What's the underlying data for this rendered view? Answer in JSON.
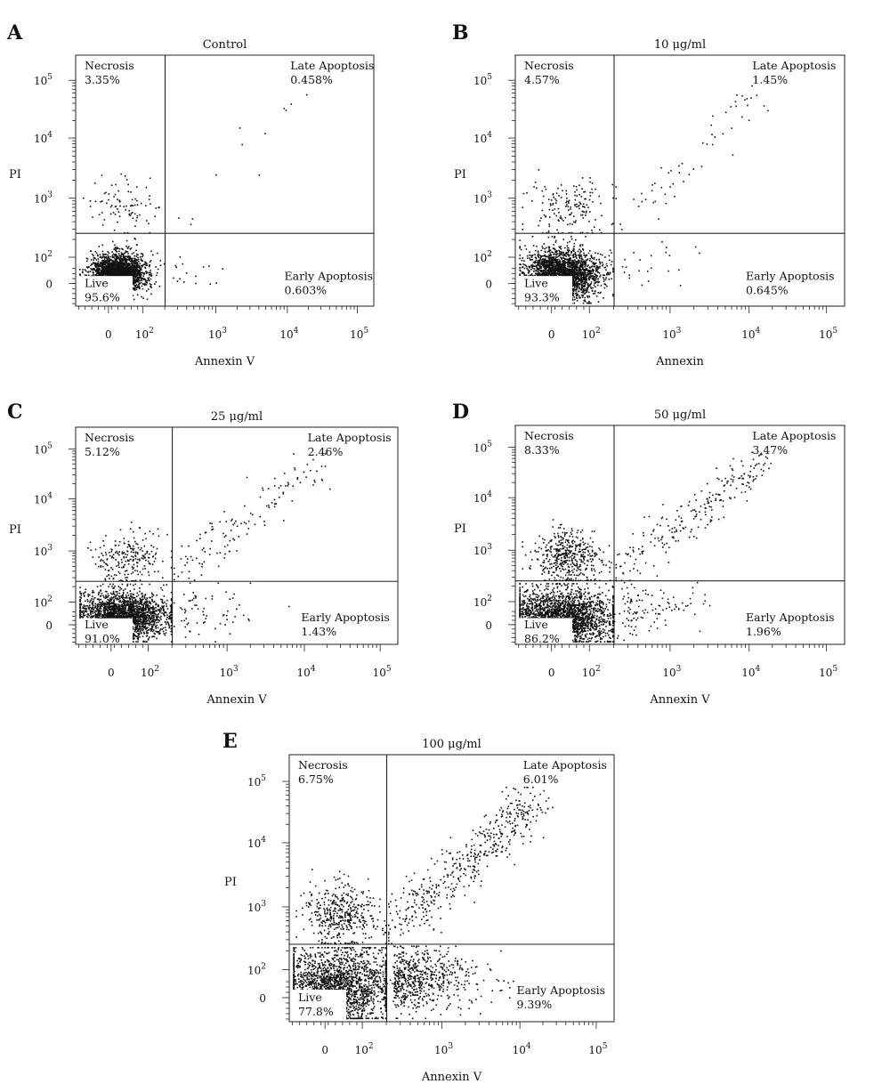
{
  "chart_data": [
    {
      "type": "scatter",
      "panel": "A",
      "title": "Control",
      "xlabel": "Annexin V",
      "ylabel": "PI",
      "x_scale": "log",
      "y_scale": "log",
      "x_ticks": [
        "0",
        "10^2",
        "10^3",
        "10^4",
        "10^5"
      ],
      "y_ticks": [
        "0",
        "10^2",
        "10^3",
        "10^4",
        "10^5"
      ],
      "quadrants": [
        {
          "position": "top-left",
          "name": "Necrosis",
          "percent": "3.35%"
        },
        {
          "position": "top-right",
          "name": "Late Apoptosis",
          "percent": "0.458%"
        },
        {
          "position": "bottom-left",
          "name": "Live",
          "percent": "95.6%"
        },
        {
          "position": "bottom-right",
          "name": "Early Apoptosis",
          "percent": "0.603%"
        }
      ],
      "event_fractions": {
        "live": 0.956,
        "necrosis": 0.0335,
        "late": 0.00458,
        "early": 0.00603
      },
      "grid": false
    },
    {
      "type": "scatter",
      "panel": "B",
      "title": "10 μg/ml",
      "xlabel": "Annexin",
      "ylabel": "PI",
      "x_scale": "log",
      "y_scale": "log",
      "x_ticks": [
        "0",
        "10^2",
        "10^3",
        "10^4",
        "10^5"
      ],
      "y_ticks": [
        "0",
        "10^2",
        "10^3",
        "10^4",
        "10^5"
      ],
      "quadrants": [
        {
          "position": "top-left",
          "name": "Necrosis",
          "percent": "4.57%"
        },
        {
          "position": "top-right",
          "name": "Late Apoptosis",
          "percent": "1.45%"
        },
        {
          "position": "bottom-left",
          "name": "Live",
          "percent": "93.3%"
        },
        {
          "position": "bottom-right",
          "name": "Early Apoptosis",
          "percent": "0.645%"
        }
      ],
      "event_fractions": {
        "live": 0.933,
        "necrosis": 0.0457,
        "late": 0.0145,
        "early": 0.00645
      },
      "grid": false
    },
    {
      "type": "scatter",
      "panel": "C",
      "title": "25 μg/ml",
      "xlabel": "Annexin V",
      "ylabel": "PI",
      "x_scale": "log",
      "y_scale": "log",
      "x_ticks": [
        "0",
        "10^2",
        "10^3",
        "10^4",
        "10^5"
      ],
      "y_ticks": [
        "0",
        "10^2",
        "10^3",
        "10^4",
        "10^5"
      ],
      "quadrants": [
        {
          "position": "top-left",
          "name": "Necrosis",
          "percent": "5.12%"
        },
        {
          "position": "top-right",
          "name": "Late Apoptosis",
          "percent": "2.46%"
        },
        {
          "position": "bottom-left",
          "name": "Live",
          "percent": "91.0%"
        },
        {
          "position": "bottom-right",
          "name": "Early Apoptosis",
          "percent": "1.43%"
        }
      ],
      "event_fractions": {
        "live": 0.91,
        "necrosis": 0.0512,
        "late": 0.0246,
        "early": 0.0143
      },
      "grid": false
    },
    {
      "type": "scatter",
      "panel": "D",
      "title": "50 μg/ml",
      "xlabel": "Annexin V",
      "ylabel": "PI",
      "x_scale": "log",
      "y_scale": "log",
      "x_ticks": [
        "0",
        "10^2",
        "10^3",
        "10^4",
        "10^5"
      ],
      "y_ticks": [
        "0",
        "10^2",
        "10^3",
        "10^4",
        "10^5"
      ],
      "quadrants": [
        {
          "position": "top-left",
          "name": "Necrosis",
          "percent": "8.33%"
        },
        {
          "position": "top-right",
          "name": "Late Apoptosis",
          "percent": "3.47%"
        },
        {
          "position": "bottom-left",
          "name": "Live",
          "percent": "86.2%"
        },
        {
          "position": "bottom-right",
          "name": "Early Apoptosis",
          "percent": "1.96%"
        }
      ],
      "event_fractions": {
        "live": 0.862,
        "necrosis": 0.0833,
        "late": 0.0347,
        "early": 0.0196
      },
      "grid": false
    },
    {
      "type": "scatter",
      "panel": "E",
      "title": "100 μg/ml",
      "xlabel": "Annexin V",
      "ylabel": "PI",
      "x_scale": "log",
      "y_scale": "log",
      "x_ticks": [
        "0",
        "10^2",
        "10^3",
        "10^4",
        "10^5"
      ],
      "y_ticks": [
        "0",
        "10^2",
        "10^3",
        "10^4",
        "10^5"
      ],
      "quadrants": [
        {
          "position": "top-left",
          "name": "Necrosis",
          "percent": "6.75%"
        },
        {
          "position": "top-right",
          "name": "Late Apoptosis",
          "percent": "6.01%"
        },
        {
          "position": "bottom-left",
          "name": "Live",
          "percent": "77.8%"
        },
        {
          "position": "bottom-right",
          "name": "Early Apoptosis",
          "percent": "9.39%"
        }
      ],
      "event_fractions": {
        "live": 0.778,
        "necrosis": 0.0675,
        "late": 0.0601,
        "early": 0.0939
      },
      "grid": false
    }
  ],
  "colors": {
    "points": "#111111",
    "axes": "#222222",
    "background": "#ffffff"
  }
}
